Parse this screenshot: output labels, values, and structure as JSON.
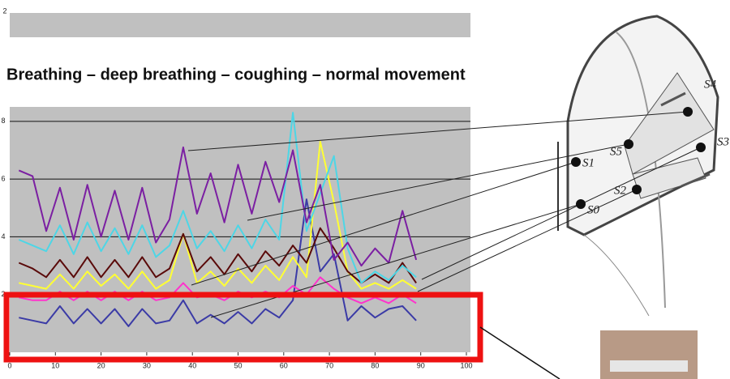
{
  "top_chart": {
    "yticks": [
      2
    ]
  },
  "chart_data": {
    "type": "line",
    "title": "Breathing – deep breathing – coughing – normal movement",
    "x": [
      2,
      5,
      8,
      11,
      14,
      17,
      20,
      23,
      26,
      29,
      32,
      35,
      38,
      41,
      44,
      47,
      50,
      53,
      56,
      59,
      62,
      65,
      68,
      71,
      74,
      77,
      80,
      83,
      86,
      89
    ],
    "series": [
      {
        "color": "#3b3ba6",
        "values": [
          1.2,
          1.1,
          1.0,
          1.6,
          1.0,
          1.5,
          1.0,
          1.5,
          0.9,
          1.5,
          1.0,
          1.1,
          1.8,
          1.0,
          1.3,
          1.0,
          1.4,
          1.0,
          1.5,
          1.2,
          1.8,
          5.3,
          2.8,
          3.4,
          1.1,
          1.6,
          1.2,
          1.5,
          1.6,
          1.1
        ]
      },
      {
        "color": "#ff33cc",
        "values": [
          1.9,
          1.8,
          1.8,
          2.1,
          1.8,
          2.1,
          1.8,
          2.1,
          1.8,
          2.1,
          1.8,
          1.9,
          2.4,
          1.9,
          2.0,
          1.8,
          2.1,
          1.9,
          2.1,
          1.9,
          2.3,
          2.0,
          2.6,
          2.2,
          1.9,
          1.7,
          1.9,
          1.7,
          2.0,
          1.7
        ]
      },
      {
        "color": "#ffff33",
        "values": [
          2.4,
          2.3,
          2.2,
          2.7,
          2.2,
          2.8,
          2.3,
          2.7,
          2.2,
          2.8,
          2.2,
          2.5,
          4.1,
          2.4,
          2.8,
          2.3,
          2.9,
          2.4,
          3.0,
          2.5,
          3.3,
          2.6,
          7.3,
          5.2,
          2.8,
          2.2,
          2.4,
          2.2,
          2.5,
          2.2
        ]
      },
      {
        "color": "#5a0a0a",
        "values": [
          3.1,
          2.9,
          2.6,
          3.2,
          2.6,
          3.3,
          2.6,
          3.2,
          2.6,
          3.3,
          2.6,
          2.9,
          4.1,
          2.8,
          3.3,
          2.7,
          3.4,
          2.8,
          3.5,
          3.0,
          3.7,
          3.1,
          4.3,
          3.6,
          2.8,
          2.4,
          2.7,
          2.4,
          3.1,
          2.4
        ]
      },
      {
        "color": "#4dd6e6",
        "values": [
          3.9,
          3.7,
          3.5,
          4.4,
          3.4,
          4.5,
          3.5,
          4.3,
          3.4,
          4.4,
          3.3,
          3.7,
          4.9,
          3.6,
          4.2,
          3.5,
          4.4,
          3.6,
          4.6,
          3.9,
          8.3,
          4.2,
          5.5,
          6.8,
          3.6,
          2.4,
          2.8,
          2.5,
          3.0,
          2.6
        ]
      },
      {
        "color": "#7b1fa2",
        "values": [
          6.3,
          6.1,
          4.2,
          5.7,
          3.9,
          5.8,
          4.0,
          5.6,
          3.9,
          5.7,
          3.8,
          4.6,
          7.1,
          4.8,
          6.2,
          4.5,
          6.5,
          4.8,
          6.6,
          5.2,
          7.0,
          4.5,
          5.8,
          3.2,
          3.8,
          3.0,
          3.6,
          3.1,
          4.9,
          3.2
        ]
      }
    ],
    "xlim": [
      0,
      100
    ],
    "xticks": [
      0,
      10,
      20,
      30,
      40,
      50,
      60,
      70,
      80,
      90,
      100
    ],
    "ylim": [
      0,
      8.5
    ],
    "yticks": [
      2,
      4,
      6,
      8
    ],
    "grid": true
  },
  "drawing": {
    "sensor_labels": [
      "S4",
      "S5",
      "S1",
      "S3",
      "S2",
      "S0"
    ]
  }
}
